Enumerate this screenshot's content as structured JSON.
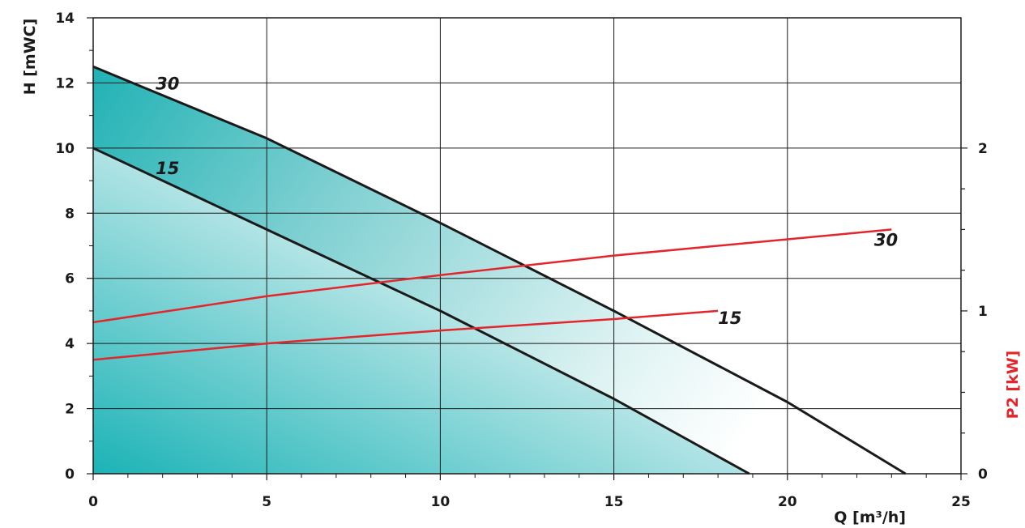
{
  "chart_data": {
    "type": "line",
    "xlabel": "Q [m³/h]",
    "ylabel": "H [mWC]",
    "y2label": "P2 [kW]",
    "xlim": [
      0,
      25
    ],
    "ylim": [
      0,
      14
    ],
    "y2lim": [
      0,
      2.8
    ],
    "grid": true,
    "x_ticks": [
      0,
      5,
      10,
      15,
      20,
      25
    ],
    "y_ticks": [
      0,
      2,
      4,
      6,
      8,
      10,
      12,
      14
    ],
    "y2_ticks": [
      0,
      1,
      2
    ],
    "head_curves": [
      {
        "name": "30",
        "points": [
          [
            0,
            12.5
          ],
          [
            5,
            10.3
          ],
          [
            10,
            7.7
          ],
          [
            15,
            5.0
          ],
          [
            20,
            2.2
          ],
          [
            23.4,
            0
          ]
        ]
      },
      {
        "name": "15",
        "points": [
          [
            0,
            10.0
          ],
          [
            5,
            7.5
          ],
          [
            10,
            5.0
          ],
          [
            15,
            2.3
          ],
          [
            18.9,
            0
          ]
        ]
      }
    ],
    "power_curves": [
      {
        "name": "30",
        "points": [
          [
            0,
            0.93
          ],
          [
            5,
            1.09
          ],
          [
            10,
            1.22
          ],
          [
            15,
            1.34
          ],
          [
            20,
            1.44
          ],
          [
            23.0,
            1.5
          ]
        ]
      },
      {
        "name": "15",
        "points": [
          [
            0,
            0.7
          ],
          [
            5,
            0.8
          ],
          [
            10,
            0.88
          ],
          [
            15,
            0.95
          ],
          [
            18.0,
            1.0
          ]
        ]
      }
    ],
    "colors": {
      "head_line": "#1a1a1a",
      "power_line": "#e3262b",
      "fill_strong": "#1bb3b6",
      "fill_light": "#ffffff",
      "axis_red": "#e3262b"
    }
  }
}
